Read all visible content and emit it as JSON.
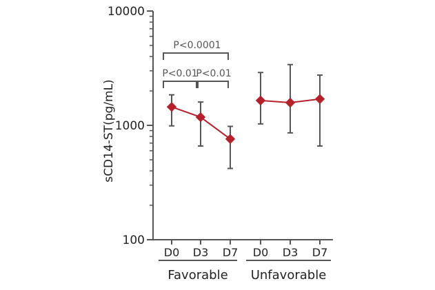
{
  "chart_data": {
    "type": "line",
    "title": "",
    "ylabel": "sCD14-ST(pg/mL)",
    "xlabel": "",
    "yscale": "log",
    "ylim": [
      100,
      10000
    ],
    "yticks": [
      100,
      1000,
      10000
    ],
    "ytick_labels": [
      "100",
      "1000",
      "10000"
    ],
    "grid": false,
    "colors": {
      "series": "#b5202a",
      "error_bars": "#555555",
      "axis": "#555555",
      "brackets": "#555555"
    },
    "groups": [
      {
        "label": "Favorable",
        "categories": [
          "D0",
          "D3",
          "D7"
        ],
        "values": [
          1450,
          1180,
          760
        ],
        "error_low": [
          990,
          660,
          420
        ],
        "error_high": [
          1850,
          1600,
          980
        ]
      },
      {
        "label": "Unfavorable",
        "categories": [
          "D0",
          "D3",
          "D7"
        ],
        "values": [
          1650,
          1580,
          1700
        ],
        "error_low": [
          1030,
          860,
          660
        ],
        "error_high": [
          2900,
          3400,
          2750
        ]
      }
    ],
    "annotations": [
      {
        "text": "P<0.01",
        "group": 0,
        "from": 0,
        "to": 1
      },
      {
        "text": "P<0.01",
        "group": 0,
        "from": 1,
        "to": 2
      },
      {
        "text": "P<0.0001",
        "group": 0,
        "from": 0,
        "to": 2
      }
    ]
  }
}
